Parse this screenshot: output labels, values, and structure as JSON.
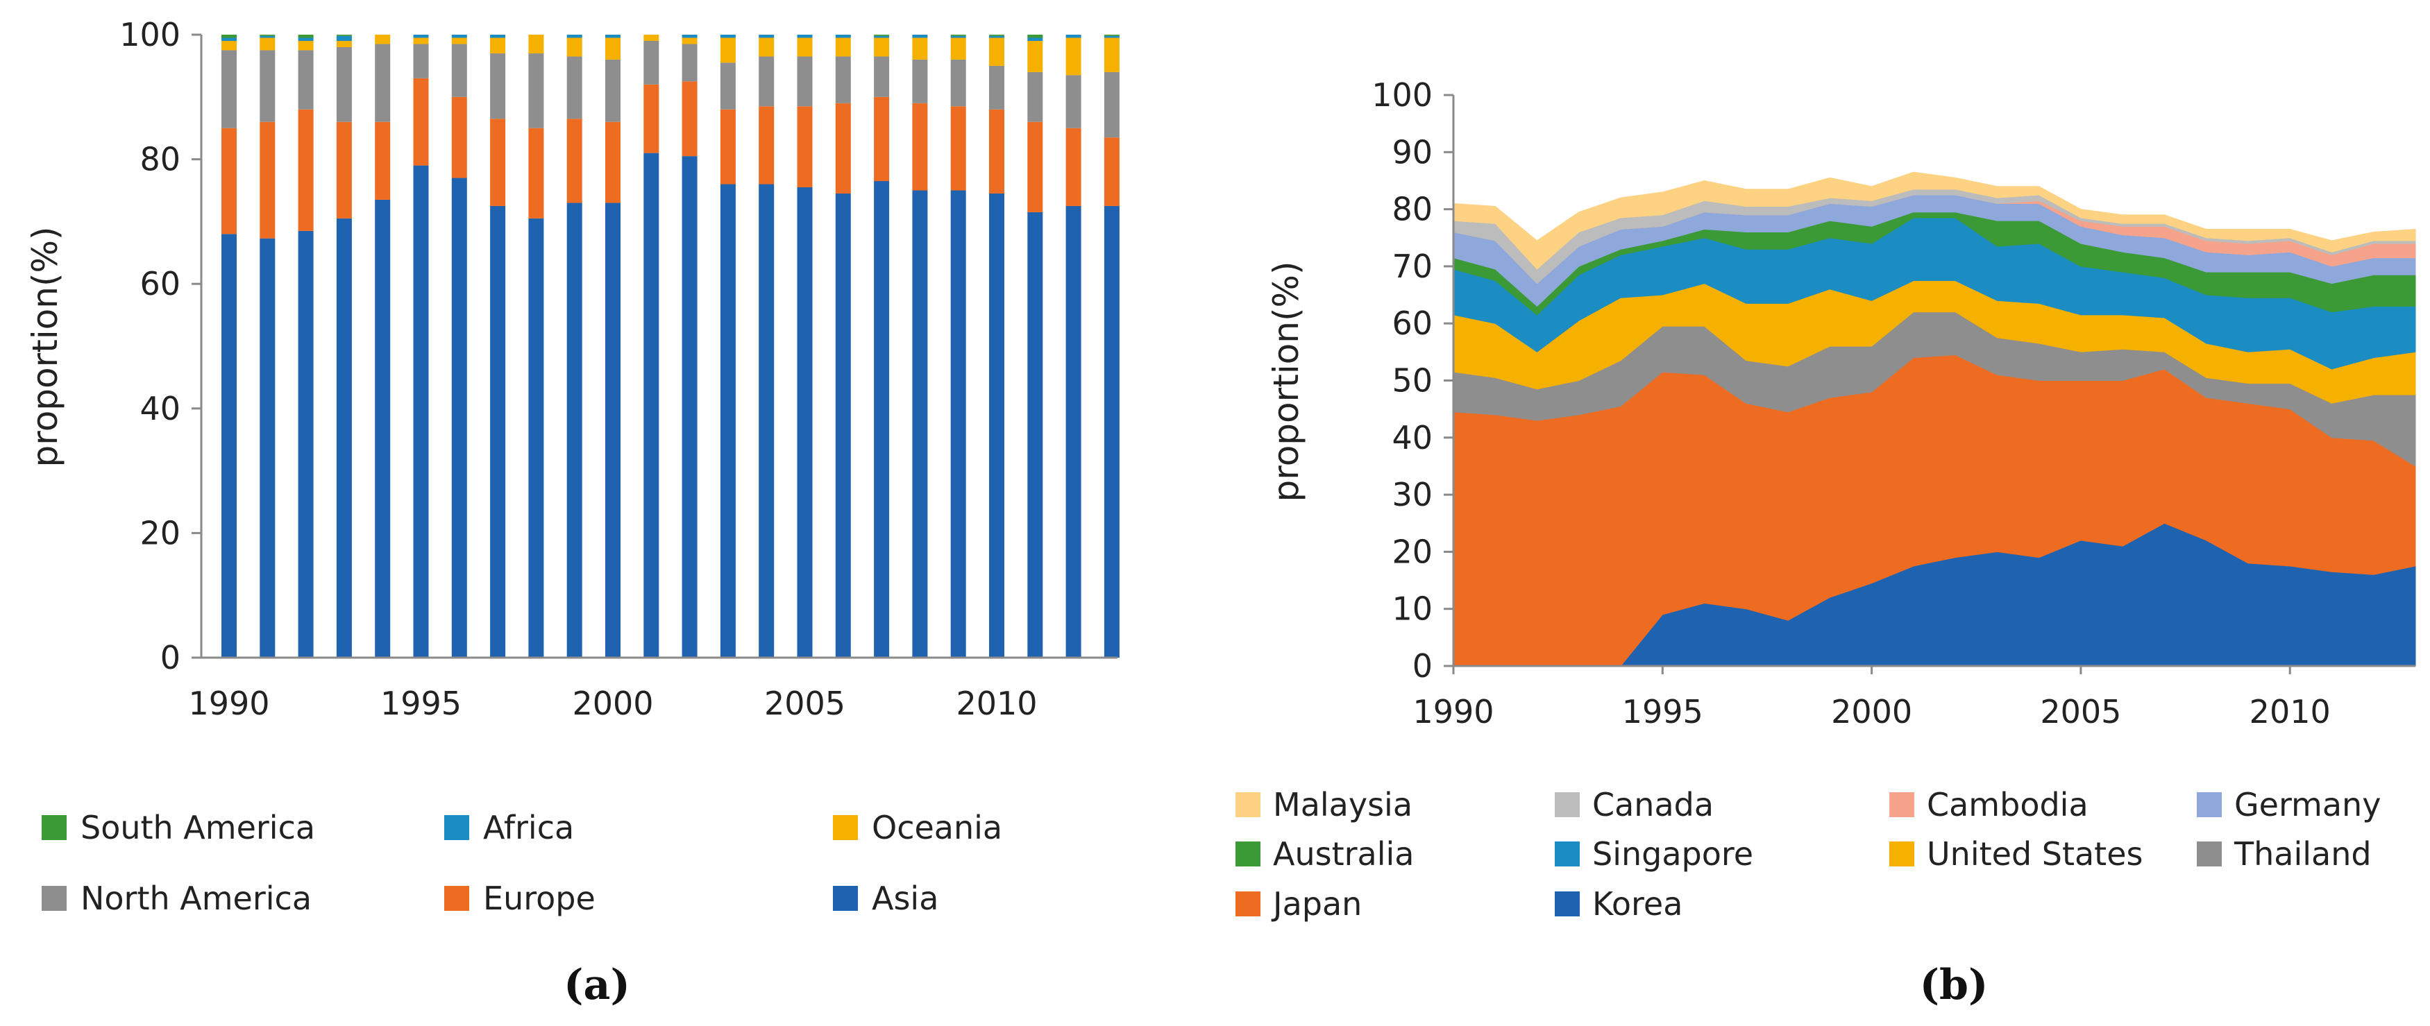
{
  "colors": {
    "Asia": "#1f63b0",
    "Europe": "#ee6c21",
    "North America": "#8e8e8e",
    "Oceania": "#f5b000",
    "Africa": "#1b8dc2",
    "South America": "#3b9a36",
    "Korea": "#1f63b0",
    "Japan": "#ee6c21",
    "Thailand": "#8e8e8e",
    "United States": "#f5b000",
    "Singapore": "#1b8dc2",
    "Australia": "#3b9a36",
    "Germany": "#8fa8dc",
    "Cambodia": "#f6a38c",
    "Canada": "#bcbcbc",
    "Malaysia": "#fdd283"
  },
  "chart_data": [
    {
      "type": "bar",
      "stacked": true,
      "panel_label": "(a)",
      "title": "",
      "xlabel": "",
      "ylabel": "proportion(%)",
      "ylim": [
        0,
        100
      ],
      "yticks": [
        "0",
        "20",
        "40",
        "60",
        "80",
        "100"
      ],
      "xtick_labels": [
        "1990",
        "1995",
        "2000",
        "2005",
        "2010"
      ],
      "x": [
        1990,
        1991,
        1992,
        1993,
        1994,
        1995,
        1996,
        1997,
        1998,
        1999,
        2000,
        2001,
        2002,
        2003,
        2004,
        2005,
        2006,
        2007,
        2008,
        2009,
        2010,
        2011,
        2012,
        2013
      ],
      "series": [
        {
          "name": "Asia",
          "values": [
            68,
            67.3,
            68.5,
            70.5,
            73.5,
            79,
            77,
            72.5,
            70.5,
            73,
            73,
            81,
            80.5,
            76,
            76,
            75.5,
            74.5,
            76.5,
            75,
            75,
            74.5,
            71.5,
            72.5,
            72.5
          ]
        },
        {
          "name": "Europe",
          "values": [
            17,
            18.7,
            19.5,
            15.5,
            12.5,
            14,
            13,
            14,
            14.5,
            13.5,
            13,
            11,
            12,
            12,
            12.5,
            13,
            14.5,
            13.5,
            14,
            13.5,
            13.5,
            14.5,
            12.5,
            11
          ]
        },
        {
          "name": "North America",
          "values": [
            12.5,
            11.5,
            9.5,
            12,
            12.5,
            5.5,
            8.5,
            10.5,
            12,
            10,
            10,
            7,
            6,
            7.5,
            8,
            8,
            7.5,
            6.5,
            7,
            7.5,
            7,
            8,
            8.5,
            10.5
          ]
        },
        {
          "name": "Oceania",
          "values": [
            1.5,
            2,
            1.5,
            1,
            1.5,
            1,
            1,
            2.5,
            3,
            3,
            3.5,
            1,
            1,
            4,
            3,
            3,
            3,
            3,
            3.5,
            3.5,
            4.5,
            5,
            6,
            5.5
          ]
        },
        {
          "name": "Africa",
          "values": [
            0.5,
            0.3,
            0.5,
            0.8,
            0,
            0.5,
            0.5,
            0.5,
            0,
            0.5,
            0.5,
            0,
            0.5,
            0.5,
            0.5,
            0.5,
            0.5,
            0.3,
            0.5,
            0.3,
            0.3,
            0.5,
            0.5,
            0.3
          ]
        },
        {
          "name": "South America",
          "values": [
            0.5,
            0.2,
            0.5,
            0.2,
            0,
            0,
            0,
            0,
            0,
            0,
            0,
            0,
            0,
            0,
            0,
            0,
            0,
            0.2,
            0,
            0.2,
            0.2,
            0.5,
            0,
            0.2
          ]
        }
      ],
      "legend": [
        "South America",
        "Africa",
        "Oceania",
        "North America",
        "Europe",
        "Asia"
      ]
    },
    {
      "type": "area",
      "stacked": true,
      "panel_label": "(b)",
      "title": "",
      "xlabel": "",
      "ylabel": "proportion(%)",
      "ylim": [
        0,
        100
      ],
      "yticks": [
        "0",
        "10",
        "20",
        "30",
        "40",
        "50",
        "60",
        "70",
        "80",
        "90",
        "100"
      ],
      "xtick_labels": [
        "1990",
        "1995",
        "2000",
        "2005",
        "2010"
      ],
      "x": [
        1990,
        1991,
        1992,
        1993,
        1994,
        1995,
        1996,
        1997,
        1998,
        1999,
        2000,
        2001,
        2002,
        2003,
        2004,
        2005,
        2006,
        2007,
        2008,
        2009,
        2010,
        2011,
        2012,
        2013
      ],
      "series": [
        {
          "name": "Korea",
          "values": [
            0,
            0,
            0,
            0,
            0,
            9,
            11,
            10,
            8,
            12,
            14.5,
            17.5,
            19,
            20,
            19,
            22,
            21,
            25,
            22,
            18,
            17.5,
            16.5,
            16,
            17.5
          ]
        },
        {
          "name": "Japan",
          "values": [
            44.5,
            44,
            43,
            44,
            45.5,
            42.5,
            40,
            36,
            36.5,
            35,
            33.5,
            36.5,
            35.5,
            31,
            31,
            28,
            29,
            27,
            25,
            28,
            27.5,
            23.5,
            23.5,
            17.5
          ]
        },
        {
          "name": "Thailand",
          "values": [
            7,
            6.5,
            5.5,
            6,
            8,
            8,
            8.5,
            7.5,
            8,
            9,
            8,
            8,
            7.5,
            6.5,
            6.5,
            5,
            5.5,
            3,
            3.5,
            3.5,
            4.5,
            6,
            8,
            12.5
          ]
        },
        {
          "name": "United States",
          "values": [
            10,
            9.5,
            6.5,
            10.5,
            11,
            5.5,
            7.5,
            10,
            11,
            10,
            8,
            5.5,
            5.5,
            6.5,
            7,
            6.5,
            6,
            6,
            6,
            5.5,
            6,
            6,
            6.5,
            7.5
          ]
        },
        {
          "name": "Singapore",
          "values": [
            8,
            7.5,
            6.5,
            8,
            7.5,
            8.5,
            8,
            9.5,
            9.5,
            9,
            10,
            11,
            11,
            9.5,
            10.5,
            8.5,
            7.5,
            7,
            8.5,
            9.5,
            9,
            10,
            9,
            8
          ]
        },
        {
          "name": "Australia",
          "values": [
            2,
            2,
            1.5,
            1.5,
            1,
            1,
            1.5,
            3,
            3,
            3,
            3,
            1,
            1,
            4.5,
            4,
            4,
            3.5,
            3.5,
            4,
            4.5,
            4.5,
            5,
            5.5,
            5.5
          ]
        },
        {
          "name": "Germany",
          "values": [
            4.5,
            5,
            4,
            3.5,
            3.5,
            2.5,
            3,
            3,
            3,
            3,
            3.5,
            3,
            3,
            3,
            3,
            3,
            3,
            3.5,
            3.5,
            3,
            3.5,
            3,
            3,
            3
          ]
        },
        {
          "name": "Cambodia",
          "values": [
            0,
            0,
            0,
            0,
            0,
            0,
            0,
            0,
            0,
            0,
            0,
            0,
            0,
            0,
            0.5,
            1,
            1.5,
            2,
            2,
            2,
            2,
            2,
            2.5,
            2.5
          ]
        },
        {
          "name": "Canada",
          "values": [
            2,
            3,
            2.5,
            2.5,
            2,
            2,
            2,
            1.5,
            1.5,
            1,
            1,
            1,
            1,
            1,
            1,
            0.5,
            0.5,
            0.5,
            0.5,
            0.5,
            0.5,
            0.5,
            0.5,
            0.5
          ]
        },
        {
          "name": "Malaysia",
          "values": [
            3,
            3,
            5,
            3.5,
            3.5,
            4,
            3.5,
            3,
            3,
            3.5,
            2.5,
            3,
            2,
            2,
            1.5,
            1.5,
            1.5,
            1.5,
            1.5,
            2,
            1.5,
            2,
            1.5,
            2
          ]
        }
      ],
      "legend": [
        "Malaysia",
        "Canada",
        "Cambodia",
        "Germany",
        "Australia",
        "Singapore",
        "United States",
        "Thailand",
        "Japan",
        "Korea"
      ]
    }
  ]
}
